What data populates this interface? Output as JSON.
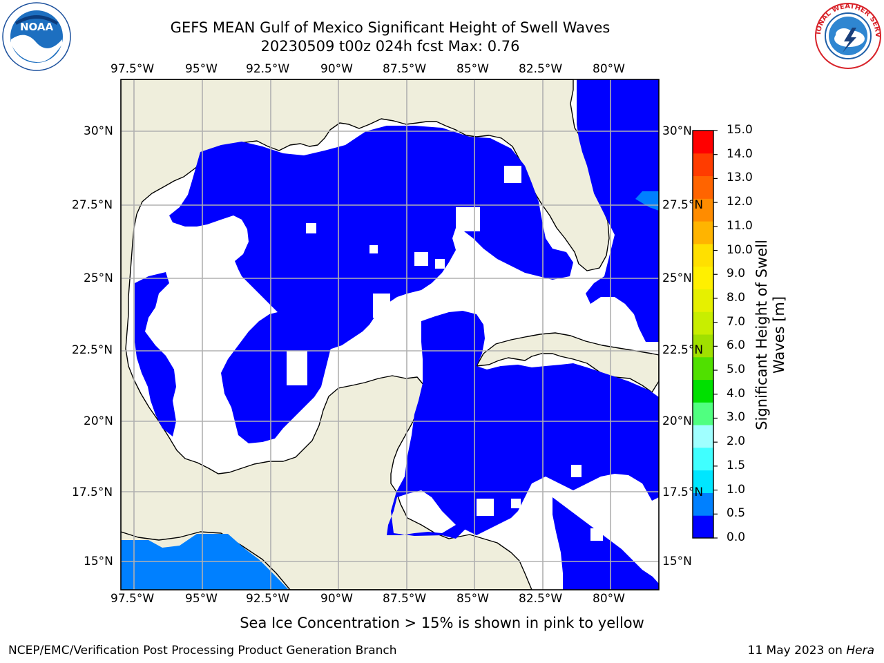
{
  "title": {
    "line1": "GEFS MEAN Gulf of Mexico Significant Height of Swell Waves",
    "line2": "20230509 t00z 024h fcst   Max: 0.76"
  },
  "map": {
    "lon_labels": [
      "97.5°W",
      "95°W",
      "92.5°W",
      "90°W",
      "87.5°W",
      "85°W",
      "82.5°W",
      "80°W"
    ],
    "lat_labels_left": [
      "30°N",
      "27.5°N",
      "25°N",
      "22.5°N",
      "20°N",
      "17.5°N",
      "15°N"
    ],
    "lat_labels_right": [
      "30°N",
      "27.5°N",
      "25°N",
      "22.5°N",
      "20°N",
      "17.5°N",
      "15°N"
    ],
    "land_color": "#efeedc",
    "water_no_data_color": "#ffffff",
    "grid_color": "#b0b0b0"
  },
  "colorbar": {
    "axis_title_line1": "Significant Height of Swell",
    "axis_title_line2": "Waves [m]",
    "ticks": [
      "15.0",
      "14.0",
      "13.0",
      "12.0",
      "11.0",
      "10.0",
      "9.0",
      "8.0",
      "7.0",
      "6.0",
      "5.0",
      "4.0",
      "3.0",
      "2.0",
      "1.5",
      "1.0",
      "0.5",
      "0.0"
    ],
    "colors_bottom_to_top": [
      "#0000ff",
      "#0080ff",
      "#00e6ff",
      "#40ffff",
      "#a0ffff",
      "#50ff80",
      "#00e000",
      "#50e000",
      "#a0e000",
      "#c8ee00",
      "#e6f000",
      "#fff000",
      "#ffe000",
      "#ffb400",
      "#ff8c00",
      "#ff6400",
      "#ff3c00",
      "#ff0000"
    ]
  },
  "notes": {
    "ice": "Sea Ice Concentration > 15% is shown in pink to yellow"
  },
  "footer": {
    "left": "NCEP/EMC/Verification Post Processing Product Generation Branch",
    "date": "11 May 2023 on",
    "machine": "Hera"
  },
  "logos": {
    "left_text": "NOAA",
    "right_text": "NATIONAL WEATHER SERVICE"
  }
}
